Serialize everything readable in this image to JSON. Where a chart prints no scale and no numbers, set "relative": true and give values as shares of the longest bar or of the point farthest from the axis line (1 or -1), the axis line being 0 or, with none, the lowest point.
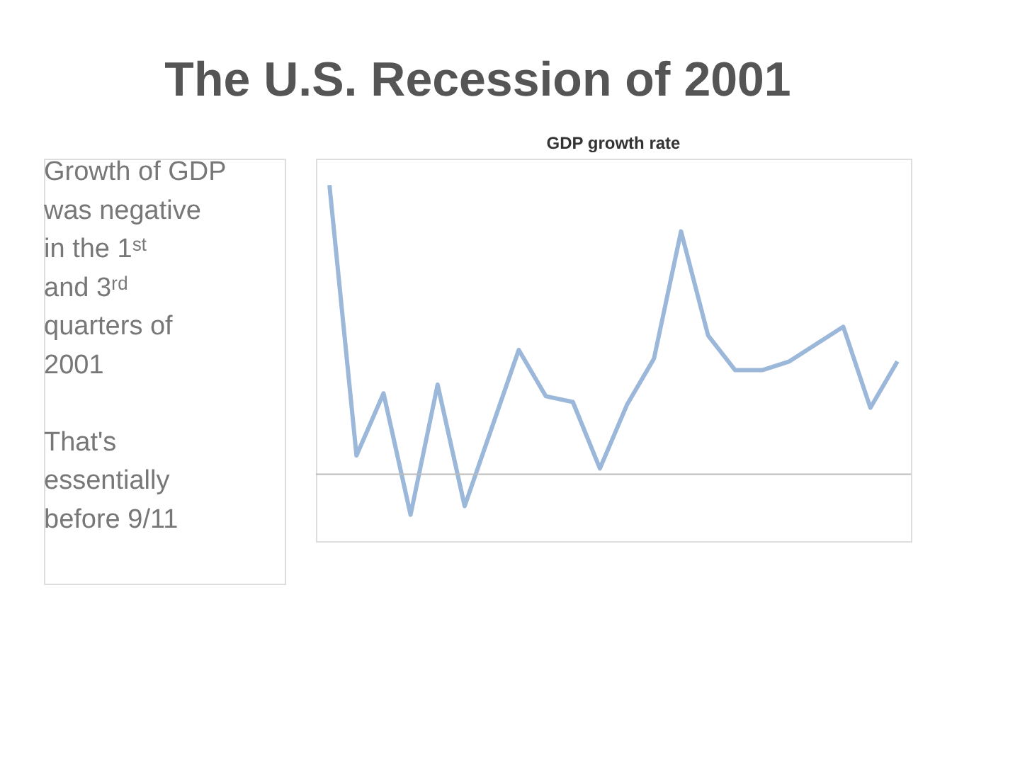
{
  "chart_data": {
    "type": "line",
    "title": "The U.S. Recession of 2001",
    "subtitle": "GDP growth rate",
    "relative": true,
    "annotations": [
      "Growth of GDP was negative in the 1ˢᵗ and 3ʳᵈ quarters of 2001",
      "That's essentially before 9/11"
    ],
    "categories": [
      null,
      null,
      null,
      null,
      null,
      null,
      null,
      null,
      null,
      null,
      null,
      null,
      null,
      null,
      null,
      null,
      null,
      null,
      null,
      null,
      null,
      null
    ],
    "series": [
      {
        "color": "#9bb7d9",
        "values": [
          1,
          0.065,
          0.28,
          -0.14,
          0.31,
          -0.11,
          0.16,
          0.43,
          0.27,
          0.25,
          0.02,
          0.24,
          0.4,
          0.84,
          0.48,
          0.36,
          0.36,
          0.39,
          0.45,
          0.51,
          0.23,
          0.39
        ]
      }
    ],
    "marker": "none",
    "line_style": "solid"
  }
}
